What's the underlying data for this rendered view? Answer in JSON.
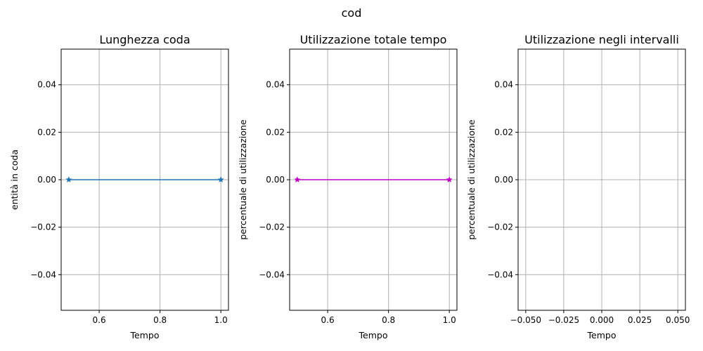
{
  "figure": {
    "suptitle": "cod"
  },
  "chart_data": [
    {
      "type": "line",
      "title": "Lunghezza coda",
      "xlabel": "Tempo",
      "ylabel": "entità in coda",
      "xlim": [
        0.475,
        1.025
      ],
      "ylim": [
        -0.055,
        0.055
      ],
      "xticks": [
        0.6,
        0.8,
        1.0
      ],
      "xtick_labels": [
        "0.6",
        "0.8",
        "1.0"
      ],
      "yticks": [
        -0.04,
        -0.02,
        0.0,
        0.02,
        0.04
      ],
      "ytick_labels": [
        "−0.04",
        "−0.02",
        "0.00",
        "0.02",
        "0.04"
      ],
      "grid": true,
      "series": [
        {
          "color": "#1f77b4",
          "marker": "star",
          "x": [
            0.5,
            1.0
          ],
          "y": [
            0.0,
            0.0
          ]
        }
      ]
    },
    {
      "type": "line",
      "title": "Utilizzazione totale tempo",
      "xlabel": "Tempo",
      "ylabel": "percentuale di utilizzazione",
      "xlim": [
        0.475,
        1.025
      ],
      "ylim": [
        -0.055,
        0.055
      ],
      "xticks": [
        0.6,
        0.8,
        1.0
      ],
      "xtick_labels": [
        "0.6",
        "0.8",
        "1.0"
      ],
      "yticks": [
        -0.04,
        -0.02,
        0.0,
        0.02,
        0.04
      ],
      "ytick_labels": [
        "−0.04",
        "−0.02",
        "0.00",
        "0.02",
        "0.04"
      ],
      "grid": true,
      "series": [
        {
          "color": "#c000c0",
          "marker": "star",
          "x": [
            0.5,
            1.0
          ],
          "y": [
            0.0,
            0.0
          ]
        }
      ]
    },
    {
      "type": "line",
      "title": "Utilizzazione negli intervalli",
      "xlabel": "Tempo",
      "ylabel": "percentuale di utilizzazione",
      "xlim": [
        -0.055,
        0.055
      ],
      "ylim": [
        -0.055,
        0.055
      ],
      "xticks": [
        -0.05,
        -0.025,
        0.0,
        0.025,
        0.05
      ],
      "xtick_labels": [
        "−0.050",
        "−0.025",
        "0.000",
        "0.025",
        "0.050"
      ],
      "yticks": [
        -0.04,
        -0.02,
        0.0,
        0.02,
        0.04
      ],
      "ytick_labels": [
        "−0.04",
        "−0.02",
        "0.00",
        "0.02",
        "0.04"
      ],
      "grid": true,
      "series": []
    }
  ]
}
